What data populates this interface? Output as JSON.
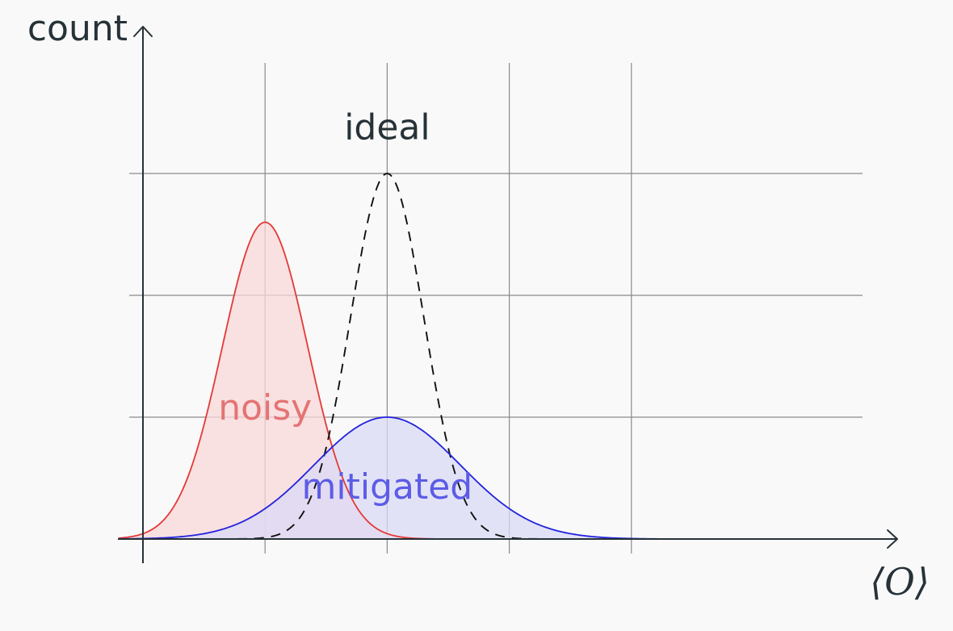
{
  "chart_data": {
    "type": "area",
    "xlabel": "⟨O⟩",
    "ylabel": "count",
    "xlim": [
      -1,
      5
    ],
    "ylim": [
      0,
      3
    ],
    "x_gridlines": [
      0,
      1,
      2,
      3,
      4
    ],
    "y_gridlines": [
      1,
      2,
      3
    ],
    "grid": true,
    "series": [
      {
        "name": "noisy",
        "distribution": "gaussian",
        "mean": 1,
        "std": 0.35,
        "peak": 2.6,
        "color": "#e53935",
        "fill": "#f8d7d8",
        "style": "solid"
      },
      {
        "name": "ideal",
        "distribution": "gaussian",
        "mean": 2,
        "std": 0.3,
        "peak": 3.0,
        "color": "#111111",
        "fill": "none",
        "style": "dashed"
      },
      {
        "name": "mitigated",
        "distribution": "gaussian",
        "mean": 2,
        "std": 0.6,
        "peak": 1.0,
        "color": "#2222dd",
        "fill": "#d9d9f6",
        "style": "solid"
      }
    ],
    "label_colors": {
      "noisy": "#e57373",
      "ideal": "#263238",
      "mitigated": "#5c5ce6"
    }
  }
}
